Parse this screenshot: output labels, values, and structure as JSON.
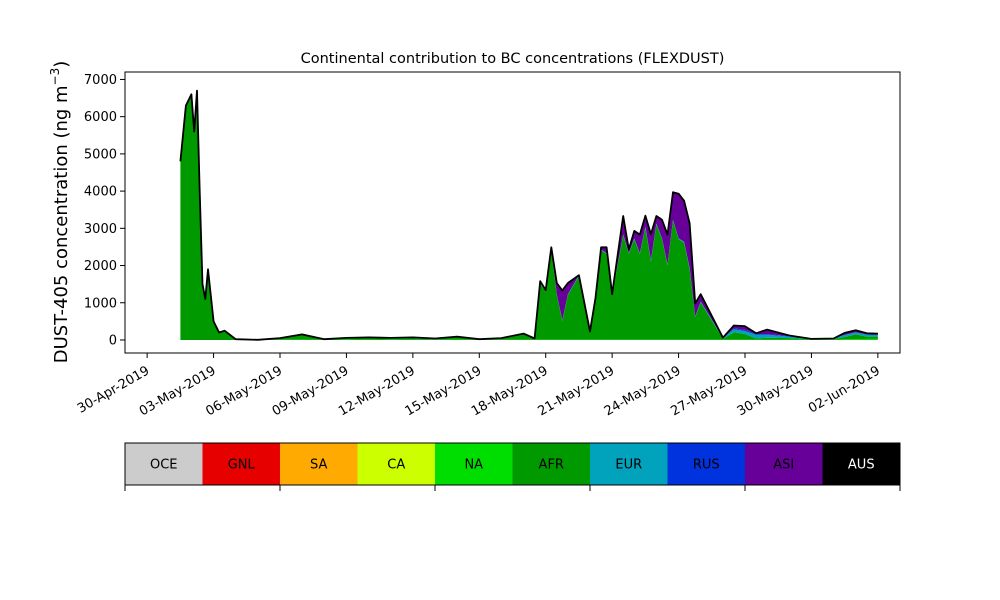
{
  "chart_data": {
    "type": "area",
    "stacked": true,
    "title": "Continental contribution to BC concentrations (FLEXDUST)",
    "ylabel": "DUST-405 concentration (ng m",
    "ylabel_sup": "−3",
    "ylabel_close": ")",
    "xlim": [
      "2019-04-29",
      "2019-06-03"
    ],
    "ylim": [
      -350,
      7200
    ],
    "yticks": [
      0,
      1000,
      2000,
      3000,
      4000,
      5000,
      6000,
      7000
    ],
    "xticks": [
      "2019-04-30",
      "2019-05-03",
      "2019-05-06",
      "2019-05-09",
      "2019-05-12",
      "2019-05-15",
      "2019-05-18",
      "2019-05-21",
      "2019-05-24",
      "2019-05-27",
      "2019-05-30",
      "2019-06-02"
    ],
    "xtick_labels": [
      "30-Apr-2019",
      "03-May-2019",
      "06-May-2019",
      "09-May-2019",
      "12-May-2019",
      "15-May-2019",
      "18-May-2019",
      "21-May-2019",
      "24-May-2019",
      "27-May-2019",
      "30-May-2019",
      "02-Jun-2019"
    ],
    "grid": false,
    "total_line_color": "#000000",
    "x": [
      "2019-05-01T12:00",
      "2019-05-01T18:00",
      "2019-05-02T00:00",
      "2019-05-02T03:00",
      "2019-05-02T06:00",
      "2019-05-02T09:00",
      "2019-05-02T12:00",
      "2019-05-02T15:00",
      "2019-05-02T18:00",
      "2019-05-03T00:00",
      "2019-05-03T06:00",
      "2019-05-03T12:00",
      "2019-05-04T00:00",
      "2019-05-05T00:00",
      "2019-05-06T00:00",
      "2019-05-07T00:00",
      "2019-05-08T00:00",
      "2019-05-09T00:00",
      "2019-05-10T00:00",
      "2019-05-11T00:00",
      "2019-05-12T00:00",
      "2019-05-13T00:00",
      "2019-05-14T00:00",
      "2019-05-15T00:00",
      "2019-05-16T00:00",
      "2019-05-17T00:00",
      "2019-05-17T12:00",
      "2019-05-17T18:00",
      "2019-05-18T00:00",
      "2019-05-18T06:00",
      "2019-05-18T12:00",
      "2019-05-18T18:00",
      "2019-05-19T00:00",
      "2019-05-19T12:00",
      "2019-05-20T00:00",
      "2019-05-20T06:00",
      "2019-05-20T12:00",
      "2019-05-20T18:00",
      "2019-05-21T00:00",
      "2019-05-21T12:00",
      "2019-05-21T18:00",
      "2019-05-22T00:00",
      "2019-05-22T06:00",
      "2019-05-22T12:00",
      "2019-05-22T18:00",
      "2019-05-23T00:00",
      "2019-05-23T06:00",
      "2019-05-23T12:00",
      "2019-05-23T18:00",
      "2019-05-24T00:00",
      "2019-05-24T06:00",
      "2019-05-24T12:00",
      "2019-05-24T18:00",
      "2019-05-25T00:00",
      "2019-05-26T00:00",
      "2019-05-26T12:00",
      "2019-05-27T00:00",
      "2019-05-27T12:00",
      "2019-05-28T00:00",
      "2019-05-29T00:00",
      "2019-05-30T00:00",
      "2019-05-31T00:00",
      "2019-05-31T12:00",
      "2019-06-01T00:00",
      "2019-06-01T12:00",
      "2019-06-02T00:00"
    ],
    "series": [
      {
        "name": "OCE",
        "color": "#cccccc",
        "values": [
          0,
          0,
          0,
          0,
          0,
          0,
          0,
          0,
          0,
          0,
          0,
          0,
          0,
          0,
          0,
          0,
          0,
          0,
          0,
          0,
          0,
          0,
          0,
          0,
          0,
          0,
          0,
          0,
          0,
          0,
          0,
          0,
          0,
          0,
          0,
          0,
          0,
          0,
          0,
          0,
          0,
          0,
          0,
          0,
          0,
          0,
          0,
          0,
          0,
          0,
          0,
          0,
          0,
          0,
          0,
          0,
          0,
          0,
          0,
          0,
          0,
          0,
          0,
          0,
          0,
          0
        ]
      },
      {
        "name": "GNL",
        "color": "#e60000",
        "values": [
          0,
          0,
          0,
          0,
          0,
          0,
          0,
          0,
          0,
          0,
          0,
          0,
          0,
          0,
          0,
          0,
          0,
          0,
          0,
          0,
          0,
          0,
          0,
          0,
          0,
          0,
          0,
          0,
          0,
          0,
          0,
          0,
          0,
          0,
          0,
          0,
          0,
          0,
          0,
          0,
          0,
          0,
          0,
          0,
          0,
          0,
          0,
          0,
          0,
          0,
          0,
          0,
          0,
          0,
          0,
          0,
          0,
          0,
          0,
          0,
          0,
          0,
          0,
          0,
          0,
          0
        ]
      },
      {
        "name": "SA",
        "color": "#ffaa00",
        "values": [
          0,
          0,
          0,
          0,
          0,
          0,
          0,
          0,
          0,
          0,
          0,
          0,
          0,
          0,
          0,
          0,
          0,
          0,
          0,
          0,
          0,
          0,
          0,
          0,
          0,
          0,
          0,
          0,
          0,
          0,
          0,
          0,
          0,
          0,
          0,
          0,
          0,
          0,
          0,
          0,
          0,
          0,
          0,
          0,
          0,
          0,
          0,
          0,
          0,
          0,
          0,
          0,
          0,
          0,
          0,
          0,
          0,
          0,
          0,
          0,
          0,
          0,
          0,
          0,
          0,
          0
        ]
      },
      {
        "name": "CA",
        "color": "#ccff00",
        "values": [
          0,
          0,
          0,
          0,
          0,
          0,
          0,
          0,
          0,
          0,
          0,
          0,
          0,
          0,
          0,
          0,
          0,
          0,
          0,
          0,
          0,
          0,
          0,
          0,
          0,
          0,
          0,
          0,
          0,
          0,
          0,
          0,
          0,
          0,
          0,
          0,
          0,
          0,
          0,
          0,
          0,
          0,
          0,
          0,
          0,
          0,
          0,
          0,
          0,
          0,
          0,
          0,
          0,
          0,
          0,
          0,
          0,
          0,
          0,
          0,
          0,
          0,
          0,
          0,
          0,
          0
        ]
      },
      {
        "name": "NA",
        "color": "#00dd00",
        "values": [
          0,
          0,
          0,
          0,
          0,
          0,
          0,
          0,
          0,
          0,
          0,
          0,
          0,
          5,
          10,
          10,
          10,
          15,
          10,
          15,
          10,
          10,
          10,
          10,
          10,
          10,
          10,
          10,
          10,
          10,
          10,
          10,
          10,
          10,
          10,
          10,
          10,
          10,
          10,
          10,
          10,
          10,
          10,
          10,
          10,
          10,
          10,
          10,
          10,
          10,
          10,
          10,
          10,
          10,
          10,
          10,
          10,
          10,
          10,
          10,
          10,
          10,
          20,
          20,
          30,
          30
        ]
      },
      {
        "name": "AFR",
        "color": "#009900",
        "values": [
          4800,
          6300,
          6600,
          5600,
          6700,
          4000,
          1500,
          1100,
          1900,
          500,
          200,
          250,
          20,
          0,
          30,
          130,
          0,
          20,
          40,
          20,
          30,
          10,
          60,
          0,
          20,
          140,
          10,
          1500,
          1300,
          2400,
          1200,
          500,
          1200,
          1700,
          200,
          1100,
          2400,
          2300,
          1200,
          2800,
          2300,
          2700,
          2300,
          3000,
          2100,
          3100,
          2700,
          2000,
          3200,
          2700,
          2600,
          1900,
          600,
          1000,
          20,
          200,
          150,
          30,
          50,
          40,
          10,
          10,
          60,
          130,
          60,
          60
        ]
      },
      {
        "name": "EUR",
        "color": "#00a3bb",
        "values": [
          0,
          0,
          0,
          0,
          0,
          0,
          0,
          0,
          0,
          0,
          0,
          0,
          0,
          0,
          10,
          10,
          10,
          20,
          20,
          20,
          30,
          20,
          20,
          10,
          20,
          20,
          20,
          20,
          30,
          20,
          20,
          20,
          20,
          30,
          20,
          20,
          20,
          20,
          20,
          20,
          20,
          20,
          20,
          30,
          30,
          20,
          20,
          20,
          20,
          20,
          30,
          30,
          20,
          20,
          20,
          80,
          80,
          100,
          80,
          40,
          10,
          20,
          50,
          50,
          50,
          40
        ]
      },
      {
        "name": "RUS",
        "color": "#0033dd",
        "values": [
          0,
          0,
          0,
          0,
          0,
          0,
          0,
          0,
          0,
          0,
          0,
          0,
          0,
          0,
          0,
          0,
          0,
          0,
          0,
          0,
          0,
          0,
          0,
          0,
          0,
          0,
          0,
          0,
          0,
          0,
          0,
          0,
          0,
          0,
          0,
          0,
          0,
          0,
          0,
          0,
          0,
          0,
          0,
          0,
          0,
          0,
          0,
          0,
          0,
          0,
          0,
          0,
          0,
          0,
          10,
          20,
          30,
          20,
          20,
          10,
          0,
          0,
          10,
          10,
          10,
          10
        ]
      },
      {
        "name": "ASI",
        "color": "#660099",
        "values": [
          0,
          0,
          0,
          0,
          0,
          0,
          0,
          0,
          0,
          0,
          0,
          0,
          0,
          0,
          0,
          0,
          0,
          0,
          0,
          0,
          0,
          0,
          0,
          0,
          0,
          0,
          0,
          50,
          0,
          60,
          300,
          800,
          300,
          0,
          0,
          0,
          60,
          160,
          0,
          500,
          100,
          200,
          500,
          300,
          700,
          200,
          500,
          800,
          740,
          1200,
          1100,
          1200,
          350,
          200,
          0,
          80,
          100,
          20,
          120,
          20,
          0,
          0,
          50,
          50,
          30,
          30
        ]
      },
      {
        "name": "AUS",
        "color": "#000000",
        "values": [
          0,
          0,
          0,
          0,
          0,
          0,
          0,
          0,
          0,
          0,
          0,
          0,
          0,
          0,
          0,
          0,
          0,
          0,
          0,
          0,
          0,
          0,
          0,
          0,
          0,
          0,
          0,
          0,
          0,
          0,
          0,
          0,
          0,
          0,
          0,
          0,
          0,
          0,
          0,
          0,
          0,
          0,
          0,
          0,
          0,
          0,
          0,
          0,
          0,
          0,
          0,
          0,
          0,
          0,
          0,
          0,
          0,
          0,
          0,
          0,
          0,
          0,
          0,
          0,
          0,
          0
        ]
      }
    ],
    "legend_placement": "bottom colorbar"
  }
}
